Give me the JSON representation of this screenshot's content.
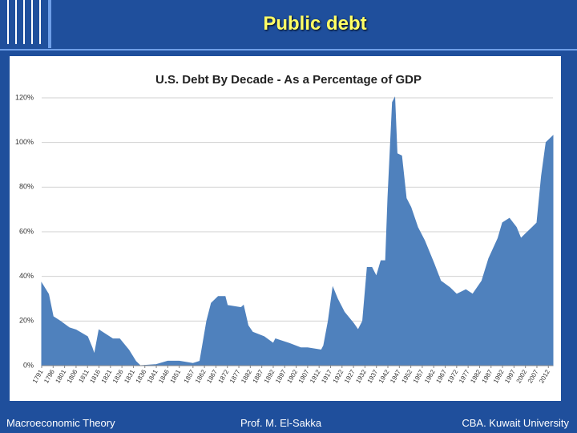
{
  "title": "Public debt",
  "footer": {
    "left": "Macroeconomic Theory",
    "center": "Prof. M. El-Sakka",
    "right": "CBA. Kuwait University"
  },
  "chart_data": {
    "type": "area",
    "title": "U.S. Debt By Decade - As a Percentage of GDP",
    "color": "#4f81bd",
    "grid": true,
    "x": [
      1791,
      1794,
      1796,
      1799,
      1803,
      1806,
      1811,
      1813,
      1814,
      1816,
      1822,
      1825,
      1829,
      1832,
      1834,
      1841,
      1846,
      1851,
      1857,
      1860,
      1863,
      1865,
      1868,
      1871,
      1872,
      1878,
      1879,
      1881,
      1883,
      1888,
      1892,
      1893,
      1899,
      1904,
      1907,
      1913,
      1914,
      1916,
      1918,
      1920,
      1921,
      1923,
      1927,
      1929,
      1931,
      1933,
      1935,
      1937,
      1939,
      1941,
      1942,
      1944,
      1945,
      1946,
      1948,
      1950,
      1952,
      1955,
      1958,
      1962,
      1965,
      1969,
      1972,
      1976,
      1979,
      1983,
      1986,
      1990,
      1992,
      1995,
      1998,
      2000,
      2002,
      2005,
      2007,
      2009,
      2011,
      2014
    ],
    "values": [
      37,
      32,
      22,
      20,
      17,
      16,
      13,
      8,
      5,
      16,
      12,
      12,
      7,
      2,
      0,
      0.5,
      2,
      2,
      1,
      2,
      20,
      28,
      31,
      31,
      27,
      26,
      27,
      18,
      15,
      13,
      10,
      12,
      10,
      8,
      8,
      7,
      9,
      20,
      35,
      30,
      28,
      24,
      19,
      16,
      20,
      44,
      44,
      40,
      47,
      47,
      75,
      118,
      120,
      95,
      94,
      75,
      71,
      62,
      56,
      46,
      38,
      35,
      32,
      34,
      32,
      38,
      48,
      57,
      64,
      66,
      62,
      57,
      59,
      62,
      64,
      85,
      100,
      103
    ],
    "xlim": [
      1791,
      2014
    ],
    "xticks": [
      1791,
      1796,
      1801,
      1806,
      1811,
      1816,
      1821,
      1826,
      1831,
      1836,
      1841,
      1846,
      1851,
      1857,
      1862,
      1867,
      1872,
      1877,
      1882,
      1887,
      1892,
      1897,
      1902,
      1907,
      1912,
      1917,
      1922,
      1927,
      1932,
      1937,
      1942,
      1947,
      1952,
      1957,
      1962,
      1967,
      1972,
      1977,
      1982,
      1987,
      1992,
      1997,
      2002,
      2007,
      2012
    ],
    "ylim": [
      0,
      120
    ],
    "yticks": [
      {
        "value": 0,
        "label": "0%"
      },
      {
        "value": 20,
        "label": "20%"
      },
      {
        "value": 40,
        "label": "40%"
      },
      {
        "value": 60,
        "label": "60%"
      },
      {
        "value": 80,
        "label": "80%"
      },
      {
        "value": 100,
        "label": "100%"
      },
      {
        "value": 120,
        "label": "120%"
      }
    ]
  }
}
